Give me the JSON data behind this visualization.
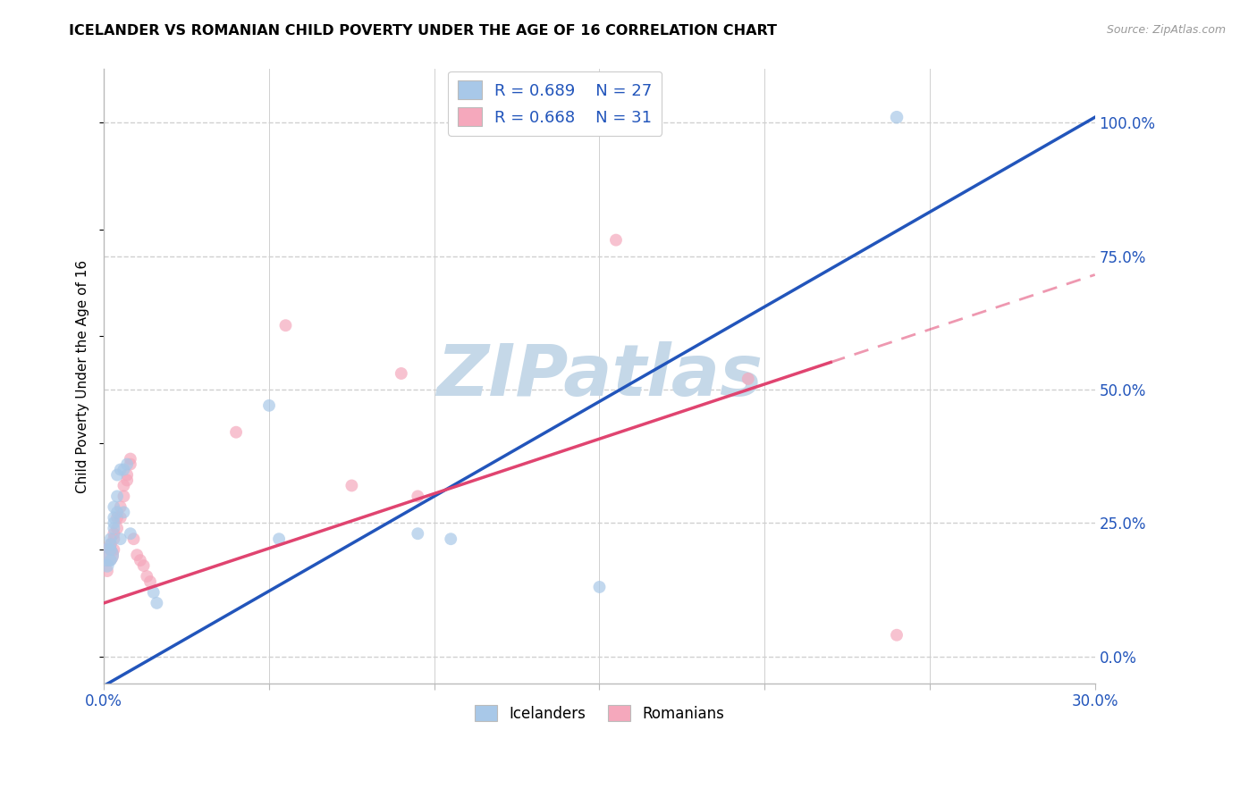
{
  "title": "ICELANDER VS ROMANIAN CHILD POVERTY UNDER THE AGE OF 16 CORRELATION CHART",
  "source": "Source: ZipAtlas.com",
  "ylabel": "Child Poverty Under the Age of 16",
  "xlim": [
    0.0,
    0.3
  ],
  "ylim": [
    -0.05,
    1.1
  ],
  "yticks_right": [
    0.0,
    0.25,
    0.5,
    0.75,
    1.0
  ],
  "ytick_right_labels": [
    "0.0%",
    "25.0%",
    "50.0%",
    "75.0%",
    "100.0%"
  ],
  "ice_color": "#a8c8e8",
  "rom_color": "#f5a8bc",
  "ice_line_color": "#2255bb",
  "rom_line_color": "#e04470",
  "bg_color": "#ffffff",
  "grid_color": "#d0d0d0",
  "watermark": "ZIPatlas",
  "watermark_color": "#c5d8e8",
  "ice_slope": 3.55,
  "ice_intercept": -0.055,
  "rom_slope": 2.05,
  "rom_intercept": 0.1,
  "icelanders_x": [
    0.001,
    0.001,
    0.002,
    0.002,
    0.002,
    0.002,
    0.003,
    0.003,
    0.003,
    0.003,
    0.004,
    0.004,
    0.004,
    0.005,
    0.005,
    0.006,
    0.006,
    0.007,
    0.008,
    0.015,
    0.016,
    0.05,
    0.053,
    0.095,
    0.105,
    0.15,
    0.24
  ],
  "icelanders_y": [
    0.19,
    0.17,
    0.22,
    0.2,
    0.21,
    0.18,
    0.26,
    0.25,
    0.28,
    0.24,
    0.3,
    0.34,
    0.27,
    0.35,
    0.22,
    0.35,
    0.27,
    0.36,
    0.23,
    0.12,
    0.1,
    0.47,
    0.22,
    0.23,
    0.22,
    0.13,
    1.01
  ],
  "icelanders_size": [
    350,
    120,
    100,
    100,
    100,
    100,
    100,
    100,
    100,
    100,
    100,
    100,
    100,
    100,
    100,
    100,
    100,
    100,
    100,
    100,
    100,
    100,
    100,
    100,
    100,
    100,
    110
  ],
  "romanians_x": [
    0.001,
    0.001,
    0.002,
    0.002,
    0.003,
    0.003,
    0.003,
    0.004,
    0.004,
    0.005,
    0.005,
    0.006,
    0.006,
    0.007,
    0.007,
    0.008,
    0.008,
    0.009,
    0.01,
    0.011,
    0.012,
    0.013,
    0.014,
    0.04,
    0.055,
    0.075,
    0.09,
    0.095,
    0.155,
    0.195,
    0.24
  ],
  "romanians_y": [
    0.19,
    0.16,
    0.21,
    0.2,
    0.23,
    0.22,
    0.2,
    0.26,
    0.24,
    0.28,
    0.26,
    0.3,
    0.32,
    0.34,
    0.33,
    0.36,
    0.37,
    0.22,
    0.19,
    0.18,
    0.17,
    0.15,
    0.14,
    0.42,
    0.62,
    0.32,
    0.53,
    0.3,
    0.78,
    0.52,
    0.04
  ],
  "romanians_size": [
    350,
    100,
    100,
    100,
    100,
    100,
    100,
    100,
    100,
    100,
    100,
    100,
    100,
    100,
    100,
    100,
    100,
    100,
    100,
    100,
    100,
    100,
    100,
    100,
    100,
    100,
    100,
    100,
    100,
    100,
    100
  ]
}
